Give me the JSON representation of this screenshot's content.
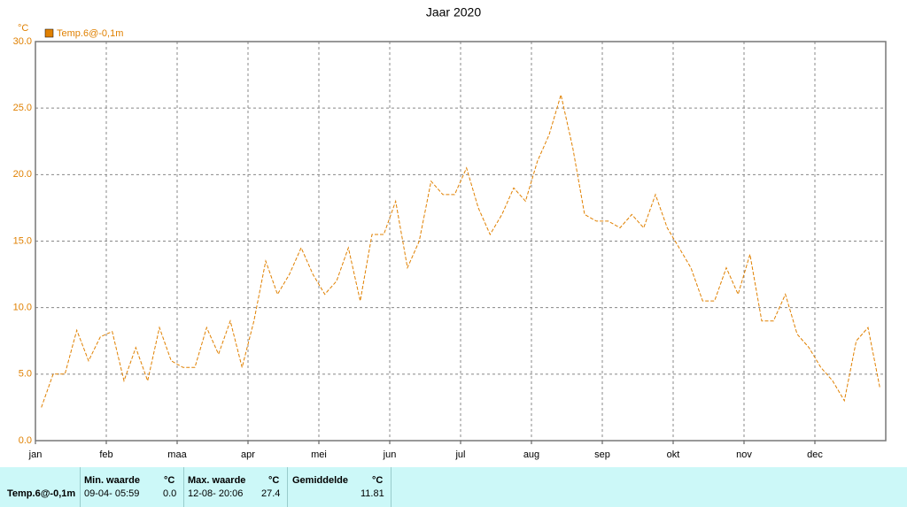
{
  "chart_data": {
    "type": "line",
    "title": "Jaar 2020",
    "ylabel": "°C",
    "categories": [
      "jan",
      null,
      null,
      null,
      null,
      null,
      "feb",
      null,
      null,
      null,
      null,
      null,
      "maa",
      null,
      null,
      null,
      null,
      null,
      "apr",
      null,
      null,
      null,
      null,
      null,
      "mei",
      null,
      null,
      null,
      null,
      null,
      "jun",
      null,
      null,
      null,
      null,
      null,
      "jul",
      null,
      null,
      null,
      null,
      null,
      "aug",
      null,
      null,
      null,
      null,
      null,
      "sep",
      null,
      null,
      null,
      null,
      null,
      "okt",
      null,
      null,
      null,
      null,
      null,
      "nov",
      null,
      null,
      null,
      null,
      null,
      "dec",
      null,
      null,
      null,
      null,
      null
    ],
    "series": [
      {
        "name": "Temp.6@-0,1m",
        "color": "#e08000",
        "values": [
          2.5,
          5,
          5,
          8.3,
          6,
          7.8,
          8.2,
          4.5,
          7,
          4.5,
          8.5,
          6,
          5.5,
          5.5,
          8.5,
          6.5,
          9,
          5.5,
          9,
          13.5,
          11,
          12.5,
          14.5,
          12.5,
          11,
          12,
          14.5,
          10.5,
          15.5,
          15.5,
          18,
          13,
          15,
          19.5,
          18.5,
          18.5,
          20.5,
          17.5,
          15.5,
          17,
          19,
          18,
          21,
          23,
          26,
          22,
          17,
          16.5,
          16.5,
          16,
          17,
          16,
          18.5,
          16,
          14.5,
          13,
          10.5,
          10.5,
          13,
          11,
          14,
          9,
          9,
          11,
          8,
          7,
          5.5,
          4.5,
          3,
          7.5,
          8.5,
          4
        ]
      }
    ],
    "ylim": [
      0,
      30
    ],
    "yticks": [
      {
        "value": 0,
        "label": "0.0"
      },
      {
        "value": 5,
        "label": "5.0"
      },
      {
        "value": 10,
        "label": "10.0"
      },
      {
        "value": 15,
        "label": "15.0"
      },
      {
        "value": 20,
        "label": "20.0"
      },
      {
        "value": 25,
        "label": "25.0"
      },
      {
        "value": 30,
        "label": "30.0"
      }
    ],
    "grid": true
  },
  "table": {
    "headers": [
      "Min. waarde",
      "°C",
      "Max. waarde",
      "°C",
      "Gemiddelde",
      "°C"
    ],
    "rows": [
      [
        "Temp.6@-0,1m",
        "09-04- 05:59",
        "0.0",
        "12-08- 20:06",
        "27.4",
        "11.81"
      ]
    ]
  }
}
